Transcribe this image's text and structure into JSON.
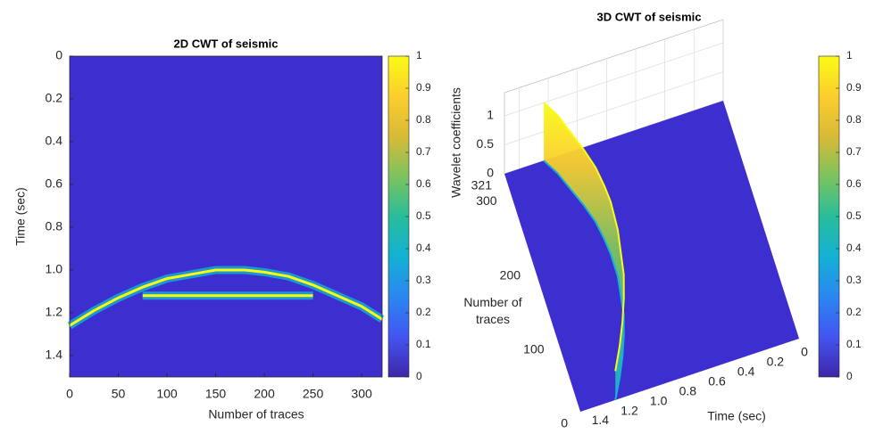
{
  "chart_data": [
    {
      "type": "heatmap",
      "title": "2D CWT of seismic",
      "xlabel": "Number of traces",
      "ylabel": "Time (sec)",
      "xlim": [
        0,
        321
      ],
      "xticks": [
        0,
        50,
        100,
        150,
        200,
        250,
        300
      ],
      "ylim": [
        0,
        1.5
      ],
      "yticks": [
        0,
        0.2,
        0.4,
        0.6,
        0.8,
        {
          "value": 1,
          "label": "1.0"
        },
        1.2,
        1.4
      ],
      "y_reversed": true,
      "colormap": "parula",
      "background_color": "#3d2fcf",
      "clim": [
        0,
        1
      ],
      "cticks": [
        0,
        0.1,
        0.2,
        0.3,
        0.4,
        0.5,
        0.6,
        0.7,
        0.8,
        0.9,
        1
      ],
      "series": [
        {
          "color": "#f9fb0e",
          "x": [
            0,
            25,
            50,
            75,
            100,
            125,
            150,
            165,
            180,
            200,
            225,
            250,
            275,
            300,
            321
          ],
          "values": [
            1.26,
            1.19,
            1.13,
            1.08,
            1.04,
            1.02,
            1.0,
            1.0,
            1.0,
            1.01,
            1.03,
            1.07,
            1.12,
            1.17,
            1.23
          ]
        },
        {
          "color": "#f9fb0e",
          "x": [
            75,
            250
          ],
          "values": [
            1.12,
            1.12
          ]
        }
      ]
    },
    {
      "type": "surface3d",
      "title": "3D CWT of seismic",
      "xlabel": "Time (sec)",
      "ylabel": "Number of traces",
      "zlabel": "Wavelet coefficients",
      "xlim": [
        0,
        1.5
      ],
      "xticks": [
        0,
        0.2,
        0.4,
        0.6,
        0.8,
        {
          "value": 1,
          "label": "1.0"
        },
        1.2,
        1.4
      ],
      "ylim": [
        0,
        321
      ],
      "yticks": [
        0,
        100,
        200,
        300,
        321
      ],
      "zlim": [
        0,
        1
      ],
      "zticks": [
        0,
        0.5,
        1
      ],
      "colormap": "parula",
      "background_color": "#3d2fcf",
      "clim": [
        0,
        1
      ],
      "cticks": [
        0,
        0.1,
        0.2,
        0.3,
        0.4,
        0.5,
        0.6,
        0.7,
        0.8,
        0.9,
        1
      ],
      "series": [
        {
          "traces": [
            0,
            25,
            50,
            75,
            100,
            125,
            150,
            165,
            180,
            200,
            225,
            250,
            275,
            300,
            321
          ],
          "values": [
            1.26,
            1.19,
            1.13,
            1.08,
            1.04,
            1.02,
            1.0,
            1.0,
            1.0,
            1.01,
            1.03,
            1.07,
            1.12,
            1.17,
            1.23
          ],
          "z": [
            0.5,
            0.55,
            0.6,
            0.65,
            0.7,
            0.75,
            0.8,
            0.85,
            0.9,
            0.92,
            0.94,
            0.96,
            0.98,
            1,
            1
          ]
        }
      ]
    }
  ]
}
